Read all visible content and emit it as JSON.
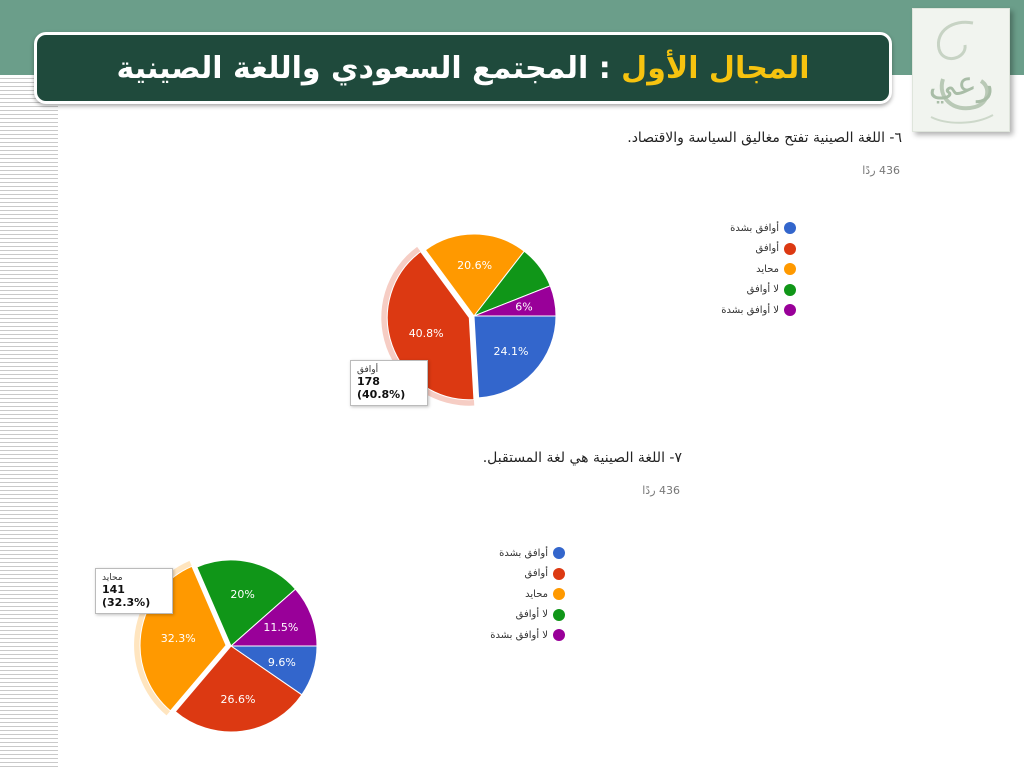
{
  "header": {
    "title_accent": "المجال الأول",
    "title_rest": " : المجتمع السعودي واللغة الصينية"
  },
  "logo": {
    "text": "رعي"
  },
  "colors": {
    "blue": "#3366cc",
    "red": "#dc3912",
    "orange": "#ff9900",
    "green": "#109618",
    "purple": "#990099",
    "header_bg": "#1f4a3c",
    "accent_yellow": "#f6c30f",
    "band_green": "#6b9e8a"
  },
  "chart_data": [
    {
      "type": "pie",
      "title": "٦- اللغة الصينية تفتح مغاليق السياسة والاقتصاد.",
      "responses": "436 ردًا",
      "categories": [
        "أوافق بشدة",
        "أوافق",
        "محايد",
        "لا أوافق",
        "لا أوافق بشدة"
      ],
      "values": [
        24.1,
        40.8,
        20.6,
        8.5,
        6.0
      ],
      "labels": [
        "24.1%",
        "40.8%",
        "20.6%",
        "",
        "6%"
      ],
      "highlighted": {
        "category": "أوافق",
        "value_text": "178 (40.8%)"
      }
    },
    {
      "type": "pie",
      "title": "٧- اللغة الصينية هي لغة المستقبل.",
      "responses": "436 ردًا",
      "categories": [
        "أوافق بشدة",
        "أوافق",
        "محايد",
        "لا أوافق",
        "لا أوافق بشدة"
      ],
      "values": [
        9.6,
        26.6,
        32.3,
        20.0,
        11.5
      ],
      "labels": [
        "9.6%",
        "26.6%",
        "32.3%",
        "20%",
        "11.5%"
      ],
      "highlighted": {
        "category": "محايد",
        "value_text": "141 (32.3%)"
      }
    }
  ]
}
